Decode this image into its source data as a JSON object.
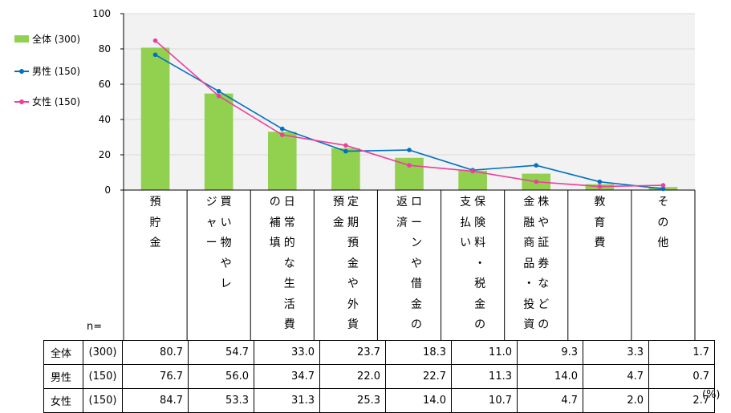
{
  "chart_data": {
    "type": "bar",
    "ylim": [
      0,
      100
    ],
    "yticks": [
      "0",
      "20",
      "40",
      "60",
      "80",
      "100"
    ],
    "grid": true,
    "legend_position": "left",
    "categories": [
      [
        "預",
        "貯",
        "金"
      ],
      [
        "買",
        "い",
        "物",
        "や",
        "レ",
        "ジ",
        "ャ",
        "ー"
      ],
      [
        "日",
        "常",
        "的",
        "な",
        "生",
        "活",
        "費",
        "の",
        "補",
        "填"
      ],
      [
        "定",
        "期",
        "預",
        "金",
        "や",
        "外",
        "貨",
        "預",
        "金"
      ],
      [
        "ロ",
        "ー",
        "ン",
        "や",
        "借",
        "金",
        "の",
        "返",
        "済"
      ],
      [
        "保",
        "険",
        "料",
        "・",
        "税",
        "金",
        "の",
        "支",
        "払",
        "い"
      ],
      [
        "株",
        "や",
        "証",
        "券",
        "な",
        "ど",
        "の",
        "金",
        "融",
        "商",
        "品",
        "・",
        "投",
        "資"
      ],
      [
        "教",
        "育",
        "費"
      ],
      [
        "そ",
        "の",
        "他"
      ]
    ],
    "category_columns": [
      [
        3
      ],
      [
        5,
        3
      ],
      [
        7,
        3
      ],
      [
        7,
        2
      ],
      [
        7,
        2
      ],
      [
        7,
        3
      ],
      [
        7,
        7
      ],
      [
        3
      ],
      [
        3
      ]
    ],
    "series": [
      {
        "name": "全体",
        "n": "(300)",
        "type": "bar",
        "values": [
          80.7,
          54.7,
          33.0,
          23.7,
          18.3,
          11.0,
          9.3,
          3.3,
          1.7
        ],
        "labels": [
          "80.7",
          "54.7",
          "33.0",
          "23.7",
          "18.3",
          "11.0",
          "9.3",
          "3.3",
          "1.7"
        ]
      },
      {
        "name": "男性",
        "n": "(150)",
        "type": "line",
        "values": [
          76.7,
          56.0,
          34.7,
          22.0,
          22.7,
          11.3,
          14.0,
          4.7,
          0.7
        ],
        "labels": [
          "76.7",
          "56.0",
          "34.7",
          "22.0",
          "22.7",
          "11.3",
          "14.0",
          "4.7",
          "0.7"
        ]
      },
      {
        "name": "女性",
        "n": "(150)",
        "type": "line",
        "values": [
          84.7,
          53.3,
          31.3,
          25.3,
          14.0,
          10.7,
          4.7,
          2.0,
          2.7
        ],
        "labels": [
          "84.7",
          "53.3",
          "31.3",
          "25.3",
          "14.0",
          "10.7",
          "4.7",
          "2.0",
          "2.7"
        ]
      }
    ],
    "colors": {
      "bar": "#92d050",
      "male": "#0070c0",
      "female": "#ee3e9c",
      "plot_bg": "#f2f2f2",
      "grid": "#d9d9d9"
    }
  },
  "legend": [
    {
      "label": "全体 (300)"
    },
    {
      "label": "男性 (150)"
    },
    {
      "label": "女性 (150)"
    }
  ],
  "table": {
    "n_label": "n=",
    "unit": "(%)"
  }
}
